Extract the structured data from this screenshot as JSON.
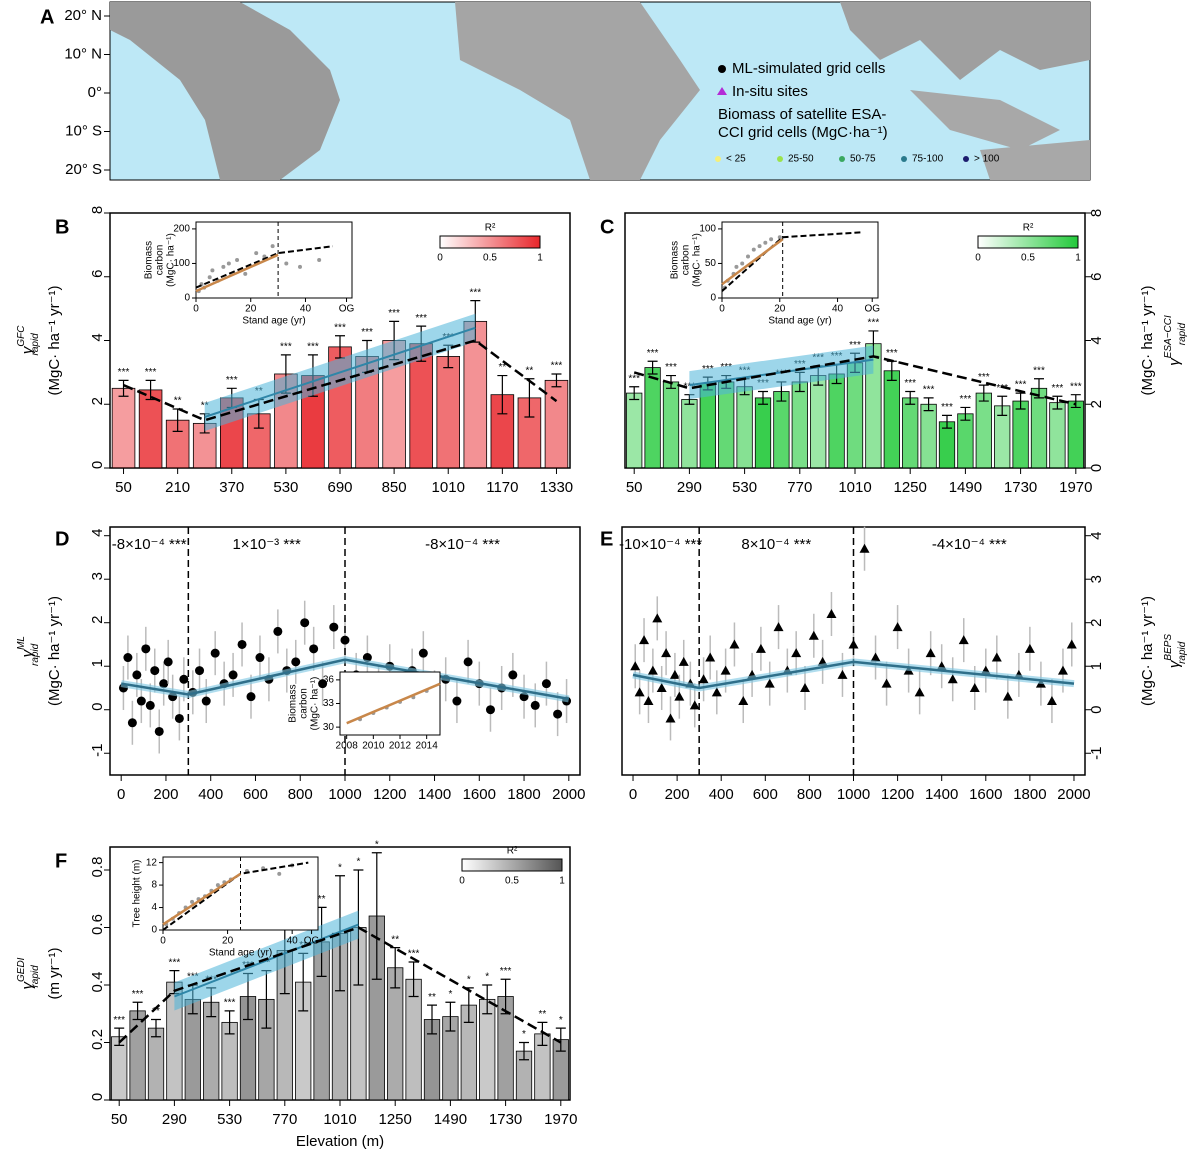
{
  "map": {
    "panel": "A",
    "lat_labels": [
      "20° N",
      "10° N",
      "0°",
      "10° S",
      "20° S"
    ],
    "legend": [
      "ML-simulated grid cells",
      "In-situ sites"
    ],
    "biomass_title": [
      "Biomass of satellite ESA-",
      "CCI grid cells (MgC·ha⁻¹)"
    ],
    "classes": [
      "< 25",
      "25-50",
      "50-75",
      "75-100",
      "> 100"
    ],
    "class_colors": [
      "#f5f07a",
      "#9be34b",
      "#3aa860",
      "#2a7a8c",
      "#1c1c6e"
    ]
  },
  "chart_data": [
    {
      "type": "bar",
      "panel": "B",
      "side": "left",
      "color": "#e8262b",
      "ylabel": {
        "symbol": "γ",
        "sub": "rapid",
        "sup": "GFC",
        "unit": "(MgC· ha⁻¹ yr⁻¹)"
      },
      "categories": [
        "50",
        null,
        "210",
        null,
        "370",
        null,
        "530",
        null,
        "690",
        null,
        "850",
        null,
        "1010",
        null,
        "1170",
        null,
        "1330"
      ],
      "values": [
        2.5,
        2.45,
        1.5,
        1.4,
        2.2,
        1.7,
        2.95,
        2.9,
        3.8,
        3.5,
        4.0,
        3.9,
        3.5,
        4.6,
        2.3,
        2.2,
        2.75
      ],
      "errors": [
        0.25,
        0.3,
        0.35,
        0.3,
        0.3,
        0.45,
        0.6,
        0.65,
        0.35,
        0.5,
        0.6,
        0.55,
        0.35,
        0.65,
        0.6,
        0.6,
        0.2
      ],
      "stars": [
        "***",
        "***",
        "**",
        "**",
        "***",
        "**",
        "***",
        "***",
        "***",
        "***",
        "***",
        "***",
        "***",
        "***",
        "**",
        "**",
        "***"
      ],
      "xlim": [
        10,
        1370
      ],
      "ylim": [
        0,
        8
      ],
      "yticks": [
        0,
        2,
        4,
        6,
        8
      ],
      "trend": {
        "x": [
          50,
          290,
          1090,
          1330
        ],
        "y": [
          2.6,
          1.5,
          4.0,
          2.1
        ]
      },
      "fit": {
        "x": [
          290,
          1090
        ],
        "y": [
          1.6,
          4.4
        ]
      },
      "legend": {
        "title": "R²",
        "ticks": [
          0,
          0.5,
          1
        ]
      },
      "inset": {
        "ylabel": [
          "Biomass",
          "carbon",
          "(MgC· ha⁻¹)"
        ],
        "xlabel": "Stand age (yr)",
        "xlim": [
          0,
          57
        ],
        "xticks": [
          0,
          20,
          40,
          {
            "value": 55,
            "label": "OG"
          }
        ],
        "ylim": [
          0,
          220
        ],
        "yticks": [
          0,
          100,
          200
        ],
        "split": 30,
        "x": [
          1,
          2,
          3,
          5,
          6,
          8,
          10,
          12,
          15,
          18,
          22,
          25,
          28,
          33,
          38,
          45
        ],
        "values": [
          20,
          40,
          30,
          60,
          80,
          50,
          90,
          100,
          110,
          70,
          130,
          120,
          150,
          100,
          90,
          110
        ],
        "fit": {
          "x": [
            0,
            30
          ],
          "y": [
            20,
            125
          ]
        },
        "trend": {
          "x": [
            0,
            30,
            50
          ],
          "y": [
            30,
            130,
            150
          ]
        }
      }
    },
    {
      "type": "bar",
      "panel": "C",
      "side": "right",
      "color": "#22c93a",
      "ylabel": {
        "symbol": "γ",
        "sub": "rapid",
        "sup": "ESA−CCI",
        "unit": "(MgC· ha⁻¹ yr⁻¹)"
      },
      "categories": [
        "50",
        null,
        null,
        "290",
        null,
        null,
        "530",
        null,
        null,
        "770",
        null,
        null,
        "1010",
        null,
        null,
        "1250",
        null,
        null,
        "1490",
        null,
        null,
        "1730",
        null,
        null,
        "1970"
      ],
      "values": [
        2.35,
        3.15,
        2.7,
        2.15,
        2.65,
        2.7,
        2.55,
        2.2,
        2.4,
        2.7,
        2.9,
        2.95,
        3.3,
        3.9,
        3.05,
        2.2,
        2.0,
        1.45,
        1.7,
        2.35,
        1.95,
        2.1,
        2.5,
        2.05,
        2.1
      ],
      "errors": [
        0.2,
        0.2,
        0.2,
        0.15,
        0.2,
        0.2,
        0.25,
        0.2,
        0.3,
        0.3,
        0.3,
        0.3,
        0.3,
        0.4,
        0.3,
        0.2,
        0.2,
        0.2,
        0.2,
        0.25,
        0.3,
        0.25,
        0.3,
        0.2,
        0.2
      ],
      "stars": [
        "***",
        "***",
        "***",
        "***",
        "***",
        "***",
        "***",
        "***",
        "***",
        "***",
        "***",
        "***",
        "***",
        "***",
        "***",
        "***",
        "***",
        "***",
        "***",
        "***",
        "***",
        "***",
        "***",
        "***",
        "***"
      ],
      "xlim": [
        10,
        2010
      ],
      "ylim": [
        0,
        8
      ],
      "yticks": [
        0,
        2,
        4,
        6,
        8
      ],
      "trend": {
        "x": [
          50,
          290,
          1090,
          1970
        ],
        "y": [
          3.0,
          2.5,
          3.5,
          2.0
        ]
      },
      "fit": {
        "x": [
          290,
          1090
        ],
        "y": [
          2.6,
          3.4
        ]
      },
      "legend": {
        "title": "R²",
        "ticks": [
          0,
          0.5,
          1
        ]
      },
      "inset": {
        "ylabel": [
          "Biomass",
          "carbon",
          "(MgC· ha⁻¹)"
        ],
        "xlabel": "Stand age (yr)",
        "xlim": [
          0,
          54
        ],
        "xticks": [
          0,
          20,
          40,
          {
            "value": 52,
            "label": "OG"
          }
        ],
        "ylim": [
          0,
          110
        ],
        "yticks": [
          0,
          50,
          100
        ],
        "split": 21,
        "x": [
          1,
          2,
          4,
          5,
          7,
          9,
          11,
          13,
          15,
          17,
          20
        ],
        "values": [
          15,
          25,
          35,
          45,
          50,
          60,
          70,
          75,
          80,
          85,
          88
        ],
        "fit": {
          "x": [
            0,
            21
          ],
          "y": [
            20,
            85
          ]
        },
        "trend": {
          "x": [
            0,
            21,
            48
          ],
          "y": [
            10,
            88,
            95
          ]
        }
      }
    },
    {
      "type": "scatter",
      "panel": "D",
      "side": "left",
      "marker": "circle",
      "color": "#000000",
      "ylabel": {
        "symbol": "γ",
        "sub": "rapid",
        "sup": "ML",
        "unit": "(MgC· ha⁻¹ yr⁻¹)"
      },
      "xlim": [
        -50,
        2050
      ],
      "xticks": [
        0,
        200,
        400,
        600,
        800,
        1000,
        1200,
        1400,
        1600,
        1800,
        2000
      ],
      "ylim": [
        -1.5,
        4.2
      ],
      "yticks": [
        -1,
        0,
        1,
        2,
        3,
        4
      ],
      "breakpoints": [
        300,
        1000
      ],
      "slopes": [
        "-8×10⁻⁴ ***",
        "1×10⁻³ ***",
        "-8×10⁻⁴ ***"
      ],
      "x": [
        10,
        30,
        50,
        70,
        90,
        110,
        130,
        150,
        170,
        190,
        210,
        230,
        260,
        280,
        320,
        350,
        380,
        420,
        460,
        500,
        540,
        580,
        620,
        660,
        700,
        740,
        780,
        820,
        860,
        900,
        950,
        1000,
        1050,
        1100,
        1150,
        1200,
        1250,
        1300,
        1350,
        1400,
        1450,
        1500,
        1550,
        1600,
        1650,
        1700,
        1750,
        1800,
        1850,
        1900,
        1950,
        1990
      ],
      "values": [
        0.5,
        1.2,
        -0.3,
        0.8,
        0.2,
        1.4,
        0.1,
        0.9,
        -0.5,
        0.6,
        1.1,
        0.3,
        -0.2,
        0.7,
        0.4,
        0.9,
        0.2,
        1.3,
        0.6,
        0.8,
        1.5,
        0.3,
        1.2,
        0.7,
        1.8,
        0.9,
        1.1,
        2.0,
        1.4,
        0.6,
        1.9,
        1.6,
        0.8,
        1.2,
        0.5,
        1.0,
        0.3,
        0.9,
        1.3,
        0.4,
        0.7,
        0.2,
        1.1,
        0.6,
        0.0,
        0.5,
        0.8,
        0.3,
        0.1,
        0.6,
        -0.1,
        0.2
      ],
      "fit": {
        "x": [
          0,
          300,
          1000,
          2000
        ],
        "y": [
          0.6,
          0.35,
          1.15,
          0.25
        ]
      },
      "inset": {
        "ylabel": [
          "Biomass",
          "carbon",
          "(MgC· ha⁻¹)"
        ],
        "xlim": [
          2007.5,
          2015
        ],
        "xticks": [
          2008,
          2010,
          2012,
          2014
        ],
        "ylim": [
          29,
          37
        ],
        "yticks": [
          30,
          33,
          36
        ],
        "x": [
          2009,
          2010,
          2011,
          2012,
          2013,
          2014
        ],
        "values": [
          31,
          31.8,
          32.5,
          33.2,
          33.8,
          34.6
        ],
        "fit": {
          "x": [
            2008,
            2015
          ],
          "y": [
            30.5,
            35.5
          ]
        }
      }
    },
    {
      "type": "scatter",
      "panel": "E",
      "side": "right",
      "marker": "triangle",
      "color": "#000000",
      "ylabel": {
        "symbol": "γ",
        "sub": "rapid",
        "sup": "BEPS",
        "unit": "(MgC· ha⁻¹ yr⁻¹)"
      },
      "xlim": [
        -50,
        2050
      ],
      "xticks": [
        0,
        200,
        400,
        600,
        800,
        1000,
        1200,
        1400,
        1600,
        1800,
        2000
      ],
      "ylim": [
        -1.5,
        4.2
      ],
      "yticks": [
        -1,
        0,
        1,
        2,
        3,
        4
      ],
      "breakpoints": [
        300,
        1000
      ],
      "slopes": [
        "-10×10⁻⁴ ***",
        "8×10⁻⁴ ***",
        "-4×10⁻⁴ ***"
      ],
      "x": [
        10,
        30,
        50,
        70,
        90,
        110,
        130,
        150,
        170,
        190,
        210,
        230,
        260,
        280,
        320,
        350,
        380,
        420,
        460,
        500,
        540,
        580,
        620,
        660,
        700,
        740,
        780,
        820,
        860,
        900,
        950,
        1000,
        1050,
        1100,
        1150,
        1200,
        1250,
        1300,
        1350,
        1400,
        1450,
        1500,
        1550,
        1600,
        1650,
        1700,
        1750,
        1800,
        1850,
        1900,
        1950,
        1990
      ],
      "values": [
        1.0,
        0.4,
        1.6,
        0.2,
        0.9,
        2.1,
        0.5,
        1.3,
        -0.2,
        0.8,
        0.3,
        1.1,
        0.6,
        0.1,
        0.7,
        1.2,
        0.4,
        0.9,
        1.5,
        0.2,
        0.8,
        1.4,
        0.6,
        1.9,
        0.9,
        1.3,
        0.5,
        1.7,
        1.1,
        2.2,
        0.8,
        1.5,
        3.7,
        1.2,
        0.6,
        1.9,
        0.9,
        0.4,
        1.3,
        1.0,
        0.7,
        1.6,
        0.5,
        0.9,
        1.2,
        0.3,
        0.8,
        1.4,
        0.6,
        0.2,
        0.9,
        1.5
      ],
      "fit": {
        "x": [
          0,
          300,
          1000,
          2000
        ],
        "y": [
          0.8,
          0.5,
          1.1,
          0.6
        ]
      }
    },
    {
      "type": "bar",
      "panel": "F",
      "side": "left",
      "color": "#888888",
      "ylabel": {
        "symbol": "γ",
        "sub": "rapid",
        "sup": "GEDI",
        "unit": "(m yr⁻¹)"
      },
      "xlabel": "Elevation (m)",
      "categories": [
        "50",
        null,
        null,
        "290",
        null,
        null,
        "530",
        null,
        null,
        "770",
        null,
        null,
        "1010",
        null,
        null,
        "1250",
        null,
        null,
        "1490",
        null,
        null,
        "1730",
        null,
        null,
        "1970"
      ],
      "values": [
        0.22,
        0.31,
        0.25,
        0.41,
        0.35,
        0.34,
        0.27,
        0.36,
        0.35,
        0.52,
        0.41,
        0.55,
        0.58,
        0.6,
        0.64,
        0.46,
        0.42,
        0.28,
        0.29,
        0.33,
        0.35,
        0.36,
        0.17,
        0.23,
        0.21
      ],
      "errors": [
        0.03,
        0.03,
        0.03,
        0.04,
        0.05,
        0.05,
        0.04,
        0.08,
        0.1,
        0.15,
        0.1,
        0.12,
        0.2,
        0.2,
        0.22,
        0.07,
        0.06,
        0.05,
        0.05,
        0.06,
        0.05,
        0.06,
        0.03,
        0.04,
        0.04
      ],
      "stars": [
        "***",
        "***",
        "**",
        "***",
        "***",
        "***",
        "***",
        "***",
        "**",
        "*",
        "**",
        "**",
        "*",
        "*",
        "*",
        "**",
        "***",
        "**",
        "*",
        "*",
        "*",
        "***",
        "*",
        "**",
        "*"
      ],
      "xlim": [
        10,
        2010
      ],
      "ylim": [
        0,
        0.88
      ],
      "yticks": [
        0,
        0.2,
        0.4,
        0.6,
        0.8
      ],
      "trend": {
        "x": [
          50,
          290,
          1090,
          1970
        ],
        "y": [
          0.2,
          0.38,
          0.6,
          0.2
        ]
      },
      "fit": {
        "x": [
          290,
          1090
        ],
        "y": [
          0.36,
          0.61
        ]
      },
      "legend": {
        "title": "R²",
        "ticks": [
          0,
          0.5,
          1
        ]
      },
      "inset": {
        "ylabel": [
          "Tree height (m)"
        ],
        "xlabel": "Stand age (yr)",
        "xlim": [
          0,
          48
        ],
        "xticks": [
          0,
          20,
          40,
          {
            "value": 46,
            "label": "OG"
          }
        ],
        "ylim": [
          0,
          13
        ],
        "yticks": [
          0,
          4,
          8,
          12
        ],
        "split": 24,
        "x": [
          1,
          3,
          5,
          7,
          9,
          11,
          13,
          15,
          17,
          19,
          21,
          26,
          31,
          36,
          40
        ],
        "values": [
          1,
          2,
          3,
          4,
          5,
          5.5,
          6,
          7,
          8,
          8.5,
          9,
          10.5,
          11,
          10,
          11.5
        ],
        "fit": {
          "x": [
            0,
            24
          ],
          "y": [
            1,
            10
          ]
        },
        "trend": {
          "x": [
            0,
            24,
            45
          ],
          "y": [
            0,
            10,
            12
          ]
        }
      }
    }
  ]
}
